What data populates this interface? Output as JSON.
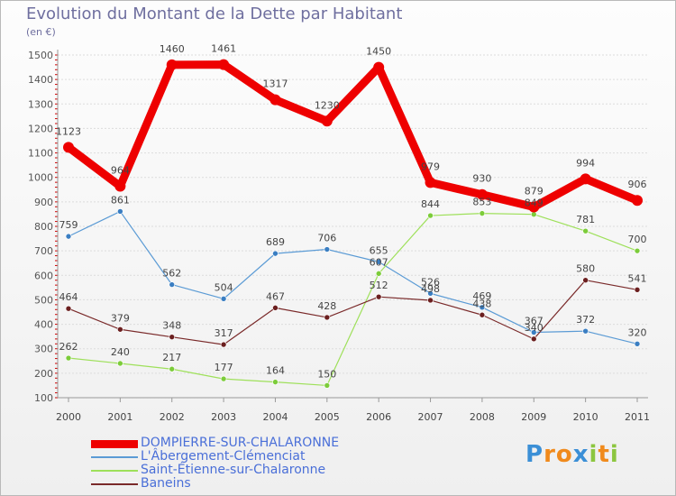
{
  "title": "Evolution du Montant de la Dette par Habitant",
  "unit_label": "(en €)",
  "logo_letters": [
    {
      "ch": "P",
      "color": "#3b8fd6"
    },
    {
      "ch": "r",
      "color": "#f08a1c"
    },
    {
      "ch": "o",
      "color": "#f08a1c"
    },
    {
      "ch": "x",
      "color": "#3b8fd6"
    },
    {
      "ch": "i",
      "color": "#8cc63f"
    },
    {
      "ch": "t",
      "color": "#f08a1c"
    },
    {
      "ch": "i",
      "color": "#8cc63f"
    }
  ],
  "chart_data": {
    "type": "line",
    "title": "Evolution du Montant de la Dette par Habitant",
    "ylabel": "(en €)",
    "xlabel": "",
    "ylim": [
      100,
      1500
    ],
    "yticks": [
      100,
      200,
      300,
      400,
      500,
      600,
      700,
      800,
      900,
      1000,
      1100,
      1200,
      1300,
      1400,
      1500
    ],
    "x": [
      "2000",
      "2001",
      "2002",
      "2003",
      "2004",
      "2005",
      "2006",
      "2007",
      "2008",
      "2009",
      "2010",
      "2011"
    ],
    "grid": "horizontal",
    "legend_position": "bottom-left",
    "series": [
      {
        "name": "DOMPIERRE-SUR-CHALARONNE",
        "color": "#ee0000",
        "marker": "#ee0000",
        "values": [
          1123,
          964,
          1460,
          1461,
          1317,
          1230,
          1450,
          979,
          930,
          879,
          994,
          906
        ]
      },
      {
        "name": "L'Âbergement-Clémenciat",
        "color": "#5b9bd5",
        "marker": "#3a7ec2",
        "values": [
          759,
          861,
          562,
          504,
          689,
          706,
          655,
          526,
          469,
          367,
          372,
          320
        ]
      },
      {
        "name": "Saint-Étienne-sur-Chalaronne",
        "color": "#9ee05a",
        "marker": "#7ccc3a",
        "values": [
          262,
          240,
          217,
          177,
          164,
          150,
          607,
          844,
          853,
          849,
          781,
          700
        ]
      },
      {
        "name": "Baneins",
        "color": "#7a2a2a",
        "marker": "#6b1f1f",
        "values": [
          464,
          379,
          348,
          317,
          467,
          428,
          512,
          498,
          438,
          340,
          580,
          541
        ]
      }
    ]
  }
}
